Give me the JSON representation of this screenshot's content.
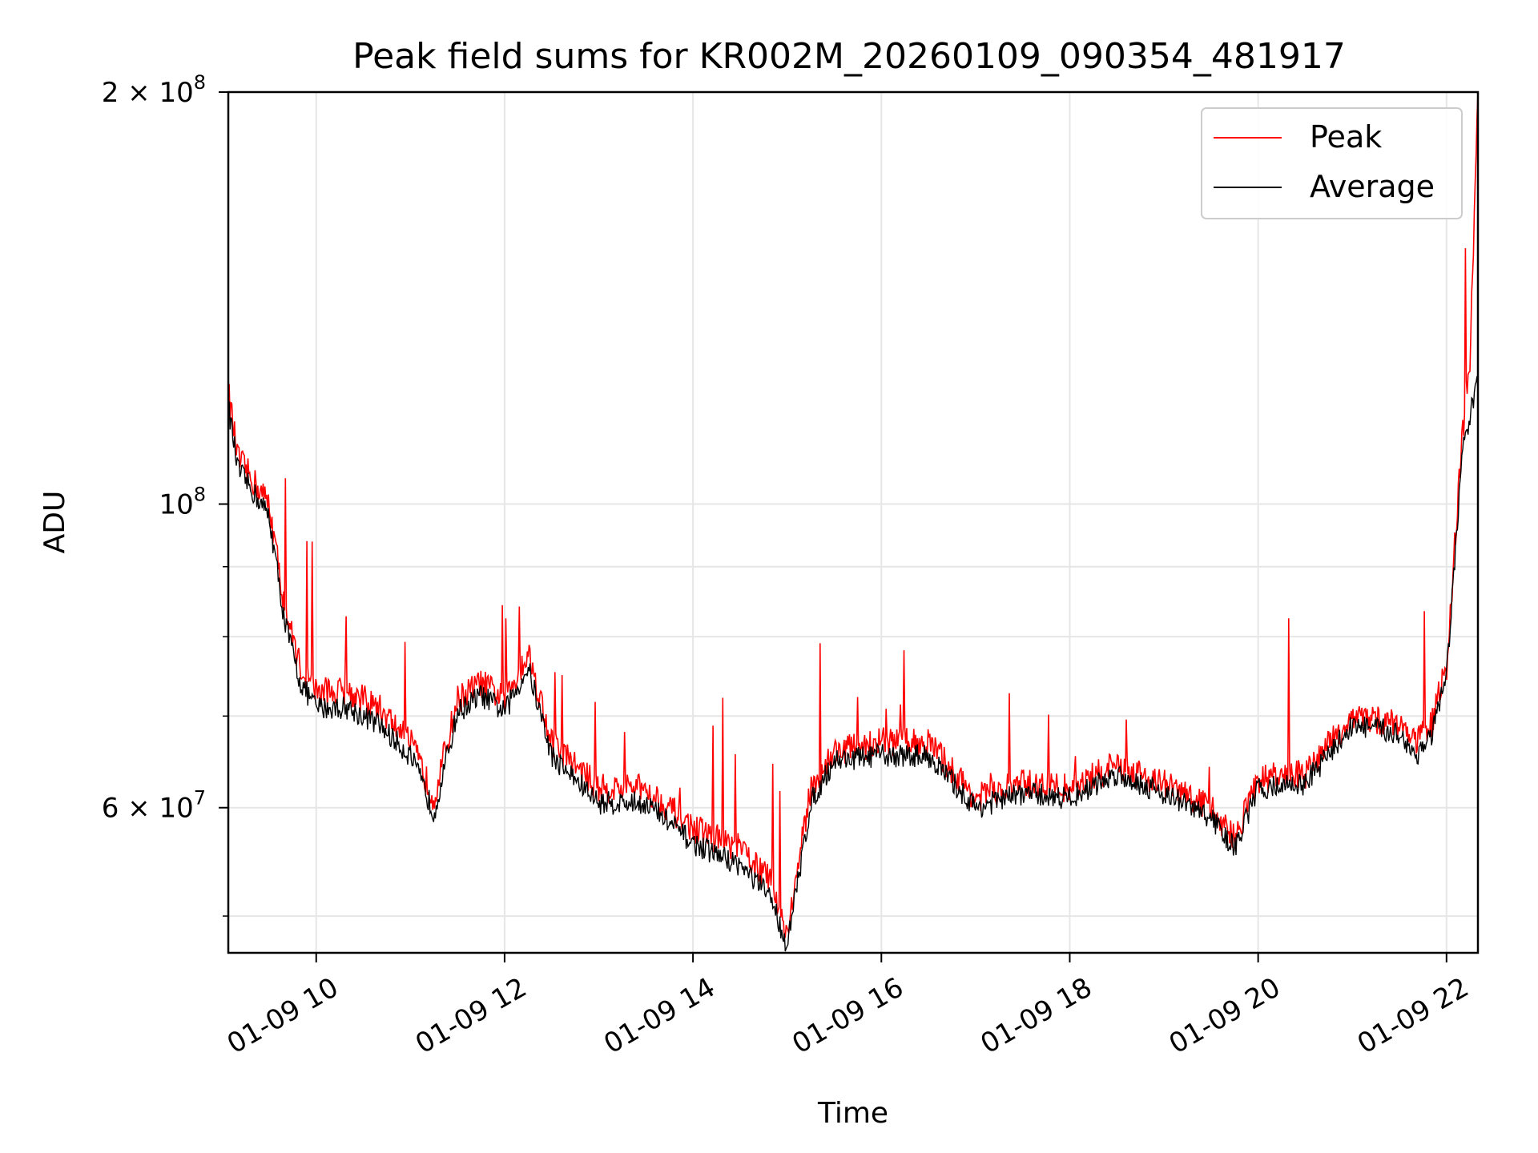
{
  "chart_data": {
    "type": "line",
    "title": "Peak field sums for KR002M_20260109_090354_481917",
    "xlabel": "Time",
    "ylabel": "ADU",
    "xlim": [
      "2026-01-09 09:04",
      "2026-01-09 22:20"
    ],
    "ylim": [
      47000000,
      200000000
    ],
    "yscale": "log",
    "grid": true,
    "legend_position": "top-right",
    "x_ticks": [
      {
        "value": "2026-01-09 10:00",
        "label": "01-09 10"
      },
      {
        "value": "2026-01-09 12:00",
        "label": "01-09 12"
      },
      {
        "value": "2026-01-09 14:00",
        "label": "01-09 14"
      },
      {
        "value": "2026-01-09 16:00",
        "label": "01-09 16"
      },
      {
        "value": "2026-01-09 18:00",
        "label": "01-09 18"
      },
      {
        "value": "2026-01-09 20:00",
        "label": "01-09 20"
      },
      {
        "value": "2026-01-09 22:00",
        "label": "01-09 22"
      }
    ],
    "y_ticks_major": [
      {
        "value": 60000000,
        "base": "6 × 10",
        "exp": "7"
      },
      {
        "value": 100000000,
        "base": "10",
        "exp": "8"
      },
      {
        "value": 200000000,
        "base": "2 × 10",
        "exp": "8"
      }
    ],
    "y_ticks_minor": [
      50000000,
      70000000,
      80000000,
      90000000
    ],
    "series": [
      {
        "name": "Peak",
        "color": "#ff0000",
        "x": [
          "2026-01-09 09:04",
          "2026-01-09 09:10",
          "2026-01-09 09:20",
          "2026-01-09 09:30",
          "2026-01-09 09:40",
          "2026-01-09 09:50",
          "2026-01-09 10:00",
          "2026-01-09 10:20",
          "2026-01-09 10:40",
          "2026-01-09 11:00",
          "2026-01-09 11:15",
          "2026-01-09 11:30",
          "2026-01-09 11:45",
          "2026-01-09 12:00",
          "2026-01-09 12:15",
          "2026-01-09 12:30",
          "2026-01-09 13:00",
          "2026-01-09 13:30",
          "2026-01-09 14:00",
          "2026-01-09 14:30",
          "2026-01-09 14:50",
          "2026-01-09 15:00",
          "2026-01-09 15:15",
          "2026-01-09 15:30",
          "2026-01-09 16:00",
          "2026-01-09 16:30",
          "2026-01-09 17:00",
          "2026-01-09 17:30",
          "2026-01-09 18:00",
          "2026-01-09 18:30",
          "2026-01-09 19:00",
          "2026-01-09 19:30",
          "2026-01-09 19:45",
          "2026-01-09 20:00",
          "2026-01-09 20:30",
          "2026-01-09 21:00",
          "2026-01-09 21:30",
          "2026-01-09 21:40",
          "2026-01-09 21:50",
          "2026-01-09 22:00",
          "2026-01-09 22:10",
          "2026-01-09 22:15",
          "2026-01-09 22:20"
        ],
        "values": [
          121000000,
          108000000,
          104000000,
          100000000,
          84000000,
          76000000,
          73000000,
          73000000,
          71000000,
          67000000,
          61000000,
          72000000,
          74000000,
          72000000,
          78000000,
          67000000,
          62000000,
          62000000,
          58000000,
          56000000,
          53000000,
          48500000,
          62000000,
          66000000,
          67000000,
          67000000,
          61000000,
          62500000,
          62000000,
          64500000,
          62500000,
          60000000,
          57000000,
          63000000,
          63500000,
          70000000,
          69000000,
          67000000,
          69000000,
          76000000,
          112000000,
          128000000,
          200000000
        ]
      },
      {
        "name": "Average",
        "color": "#000000",
        "x": [
          "2026-01-09 09:04",
          "2026-01-09 09:10",
          "2026-01-09 09:20",
          "2026-01-09 09:30",
          "2026-01-09 09:40",
          "2026-01-09 09:50",
          "2026-01-09 10:00",
          "2026-01-09 10:20",
          "2026-01-09 10:40",
          "2026-01-09 11:00",
          "2026-01-09 11:15",
          "2026-01-09 11:30",
          "2026-01-09 11:45",
          "2026-01-09 12:00",
          "2026-01-09 12:15",
          "2026-01-09 12:30",
          "2026-01-09 13:00",
          "2026-01-09 13:30",
          "2026-01-09 14:00",
          "2026-01-09 14:30",
          "2026-01-09 14:50",
          "2026-01-09 15:00",
          "2026-01-09 15:15",
          "2026-01-09 15:30",
          "2026-01-09 16:00",
          "2026-01-09 16:30",
          "2026-01-09 17:00",
          "2026-01-09 17:30",
          "2026-01-09 18:00",
          "2026-01-09 18:30",
          "2026-01-09 19:00",
          "2026-01-09 19:30",
          "2026-01-09 19:45",
          "2026-01-09 20:00",
          "2026-01-09 20:30",
          "2026-01-09 21:00",
          "2026-01-09 21:30",
          "2026-01-09 21:40",
          "2026-01-09 21:50",
          "2026-01-09 22:00",
          "2026-01-09 22:10",
          "2026-01-09 22:15",
          "2026-01-09 22:20"
        ],
        "values": [
          118000000,
          106000000,
          102000000,
          98000000,
          82000000,
          74000000,
          71000000,
          71000000,
          69000000,
          65500000,
          59500000,
          70500000,
          72500000,
          70500000,
          76000000,
          65500000,
          60500000,
          60500000,
          56500000,
          54500000,
          51500000,
          47500000,
          60500000,
          65000000,
          65500000,
          65500000,
          60000000,
          61500000,
          61000000,
          63500000,
          61500000,
          59000000,
          56000000,
          62000000,
          62500000,
          69000000,
          68000000,
          65500000,
          67500000,
          74500000,
          109000000,
          116000000,
          123000000
        ]
      }
    ]
  }
}
